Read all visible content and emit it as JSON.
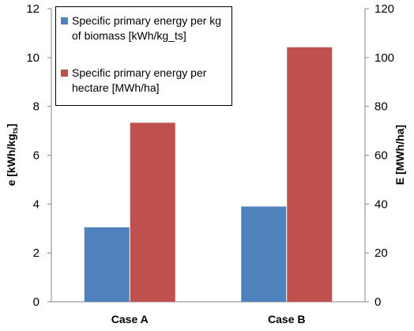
{
  "chart_data": {
    "type": "bar",
    "categories": [
      "Case A",
      "Case B"
    ],
    "series": [
      {
        "name": "Specific primary energy per kg of biomass [kWh/kg_ts]",
        "axis": "left",
        "color": "#4f81bd",
        "values": [
          3.05,
          3.9
        ]
      },
      {
        "name": "Specific primary energy per hectare [MWh/ha]",
        "axis": "right",
        "color": "#c0504d",
        "values": [
          73.3,
          104.2
        ]
      }
    ],
    "ylabel_left": {
      "main": "e [kWh/kg",
      "sub": "ts",
      "close": "]"
    },
    "ylabel_right": "E [MWh/ha]",
    "ylim_left": [
      0,
      12
    ],
    "ylim_right": [
      0,
      120
    ],
    "yticks_left": [
      "0",
      "2",
      "4",
      "6",
      "8",
      "10",
      "12"
    ],
    "yticks_right": [
      "0",
      "20",
      "40",
      "60",
      "80",
      "100",
      "120"
    ],
    "grid": false,
    "legend_position": "top-left"
  }
}
